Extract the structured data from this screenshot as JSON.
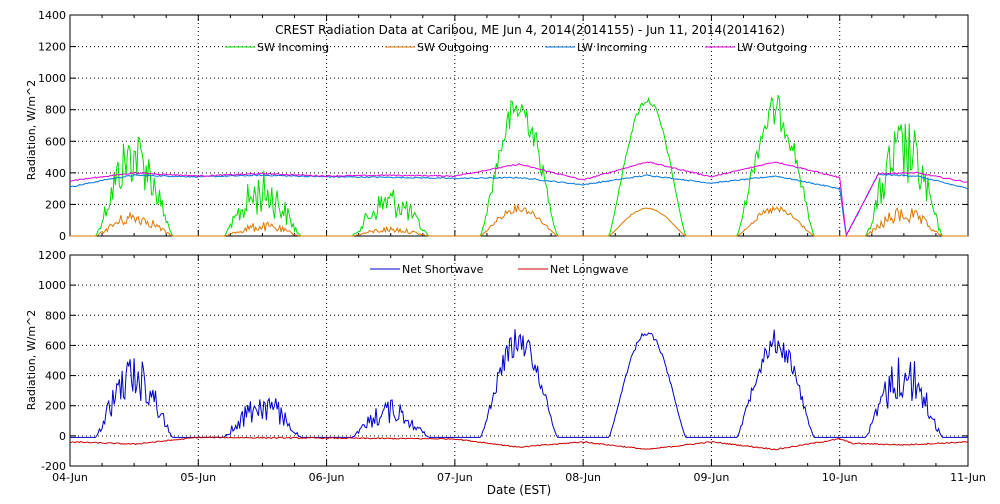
{
  "chart_data": [
    {
      "type": "line",
      "title": "CREST Radiation Data at Caribou, ME   Jun  4, 2014(2014155) - Jun 11, 2014(2014162)",
      "xlabel": "",
      "ylabel": "Radiation, W/m^2",
      "ylim": [
        0,
        1400
      ],
      "yticks": [
        "0",
        "200",
        "400",
        "600",
        "800",
        "1000",
        "1200",
        "1400"
      ],
      "grid": true,
      "legend_position": "top",
      "series": [
        {
          "name": "SW Incoming",
          "color": "#00dd00",
          "daily_peaks": [
            700,
            420,
            320,
            920,
            880,
            900,
            760
          ],
          "night_value": 0
        },
        {
          "name": "SW Outgoing",
          "color": "#dd7700",
          "daily_peaks": [
            160,
            90,
            60,
            200,
            180,
            190,
            190
          ],
          "night_value": 0
        },
        {
          "name": "LW Incoming",
          "color": "#0077dd",
          "x": [
            0,
            0.3,
            0.5,
            1,
            1.5,
            2,
            2.5,
            3,
            3.5,
            4,
            4.5,
            5,
            5.5,
            6,
            6.05,
            6.3,
            6.6,
            7
          ],
          "values": [
            310,
            360,
            385,
            375,
            385,
            375,
            372,
            365,
            370,
            325,
            385,
            335,
            380,
            300,
            0,
            390,
            380,
            300
          ]
        },
        {
          "name": "LW Outgoing",
          "color": "#dd00dd",
          "x": [
            0,
            0.3,
            0.5,
            1,
            1.5,
            2,
            2.5,
            3,
            3.5,
            4,
            4.5,
            5,
            5.5,
            6,
            6.05,
            6.3,
            6.6,
            7
          ],
          "values": [
            350,
            380,
            400,
            380,
            395,
            380,
            385,
            380,
            455,
            355,
            470,
            375,
            470,
            370,
            0,
            395,
            400,
            340
          ]
        }
      ]
    },
    {
      "type": "line",
      "title": "",
      "xlabel": "Date (EST)",
      "ylabel": "Radiation, W/m^2",
      "ylim": [
        -200,
        1200
      ],
      "yticks": [
        "-200",
        "0",
        "200",
        "400",
        "600",
        "800",
        "1000",
        "1200"
      ],
      "xticks": [
        "04-Jun",
        "05-Jun",
        "06-Jun",
        "07-Jun",
        "08-Jun",
        "09-Jun",
        "10-Jun",
        "11-Jun"
      ],
      "grid": true,
      "legend_position": "top",
      "series": [
        {
          "name": "Net Shortwave",
          "color": "#0000cc",
          "daily_peaks": [
            550,
            310,
            250,
            720,
            700,
            710,
            570
          ],
          "night_value": -10
        },
        {
          "name": "Net Longwave",
          "color": "#cc0000",
          "x": [
            0,
            0.5,
            1,
            2,
            3,
            3.5,
            4,
            4.5,
            5,
            5.5,
            6,
            6.1,
            6.5,
            7
          ],
          "values": [
            -40,
            -55,
            -10,
            -15,
            -20,
            -75,
            -40,
            -90,
            -40,
            -90,
            -20,
            -50,
            -60,
            -40
          ]
        }
      ]
    }
  ]
}
